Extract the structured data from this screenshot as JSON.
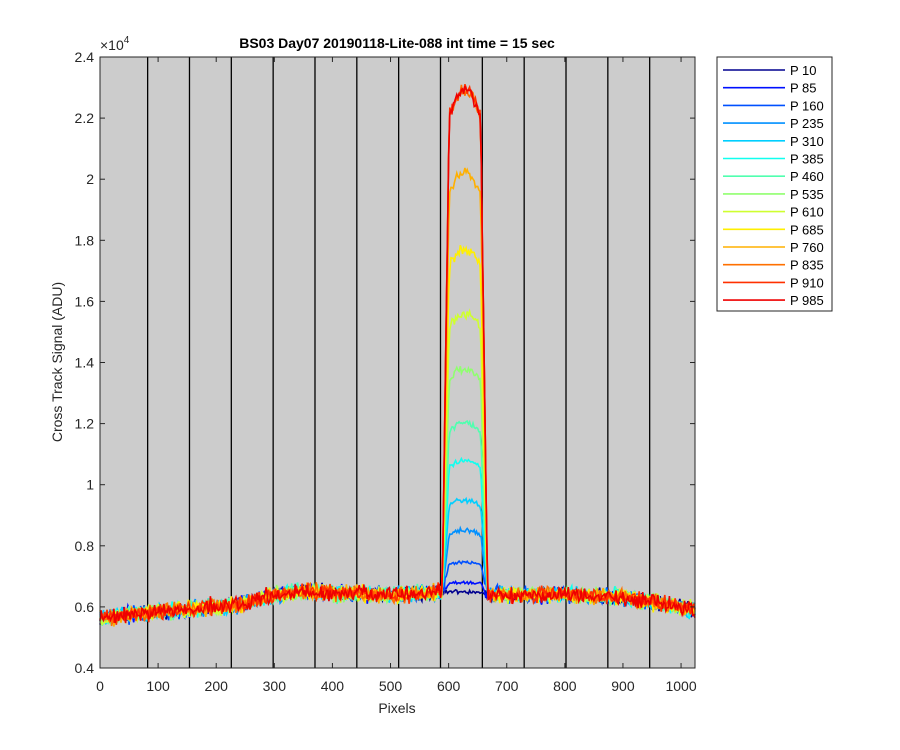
{
  "chart_data": {
    "type": "line",
    "title": "BS03 Day07 20190118-Lite-088 int time = 15 sec",
    "xlabel": "Pixels",
    "ylabel": "Cross Track Signal (ADU)",
    "y_exponent_label": "×10",
    "y_exponent_power": "4",
    "xlim": [
      0,
      1024
    ],
    "ylim": [
      0.4,
      2.4
    ],
    "y_multiplier": 10000,
    "xticks": [
      0,
      100,
      200,
      300,
      400,
      500,
      600,
      700,
      800,
      900,
      1000
    ],
    "xtick_labels": [
      "0",
      "100",
      "200",
      "300",
      "400",
      "500",
      "600",
      "700",
      "800",
      "900",
      "1000"
    ],
    "yticks": [
      0.4,
      0.6,
      0.8,
      1,
      1.2,
      1.4,
      1.6,
      1.8,
      2,
      2.2,
      2.4
    ],
    "ytick_labels": [
      "0.4",
      "0.6",
      "0.8",
      "1",
      "1.2",
      "1.4",
      "1.6",
      "1.8",
      "2",
      "2.2",
      "2.4"
    ],
    "vertical_lines_x": [
      82,
      154,
      226,
      298,
      370,
      442,
      514,
      586,
      658,
      730,
      802,
      874,
      946
    ],
    "plot_background": "#cccccc",
    "legend_position": "outside-right",
    "baseline_profile": {
      "x": [
        0,
        100,
        200,
        250,
        300,
        350,
        400,
        500,
        590,
        660,
        700,
        800,
        900,
        1000,
        1024
      ],
      "y": [
        0.565,
        0.585,
        0.6,
        0.61,
        0.64,
        0.65,
        0.645,
        0.64,
        0.65,
        0.64,
        0.64,
        0.64,
        0.63,
        0.6,
        0.59
      ]
    },
    "plateau_x_range": [
      593,
      663
    ],
    "series": [
      {
        "name": "P 10",
        "color": "#00008f",
        "peak": 0.65
      },
      {
        "name": "P 85",
        "color": "#0010ff",
        "peak": 0.68
      },
      {
        "name": "P 160",
        "color": "#0050ff",
        "peak": 0.745
      },
      {
        "name": "P 235",
        "color": "#0090ff",
        "peak": 0.85
      },
      {
        "name": "P 310",
        "color": "#00cfff",
        "peak": 0.95
      },
      {
        "name": "P 385",
        "color": "#10ffef",
        "peak": 1.08
      },
      {
        "name": "P 460",
        "color": "#50ffaf",
        "peak": 1.2
      },
      {
        "name": "P 535",
        "color": "#90ff6f",
        "peak": 1.38
      },
      {
        "name": "P 610",
        "color": "#cfff30",
        "peak": 1.56
      },
      {
        "name": "P 685",
        "color": "#ffef00",
        "peak": 1.77
      },
      {
        "name": "P 760",
        "color": "#ffb000",
        "peak": 2.02
      },
      {
        "name": "P 835",
        "color": "#ff7000",
        "peak": 2.29
      },
      {
        "name": "P 910",
        "color": "#ff3000",
        "peak": 2.29
      },
      {
        "name": "P 985",
        "color": "#ef0000",
        "peak": 2.29
      }
    ]
  }
}
